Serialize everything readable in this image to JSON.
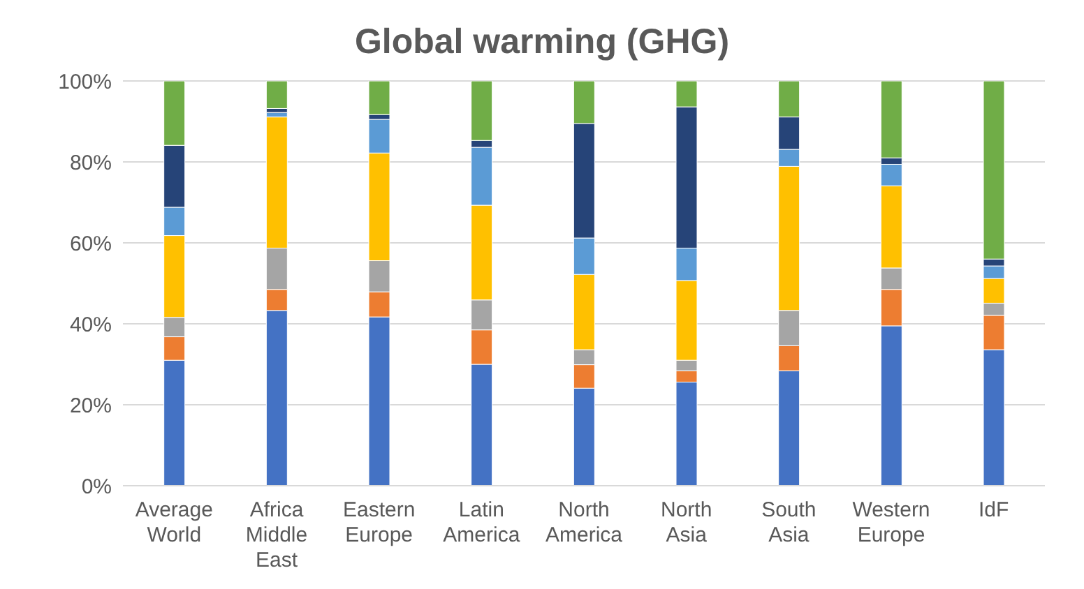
{
  "chart_data": {
    "type": "bar",
    "stacked": true,
    "title": "Global warming (GHG)",
    "categories": [
      "Average World",
      "Africa Middle East",
      "Eastern Europe",
      "Latin America",
      "North America",
      "North Asia",
      "South Asia",
      "Western Europe",
      "IdF"
    ],
    "series": [
      {
        "color": "#4472c4",
        "values": [
          31.0,
          43.3,
          41.7,
          30.0,
          24.1,
          25.6,
          28.4,
          39.5,
          33.6
        ]
      },
      {
        "color": "#ed7d31",
        "values": [
          5.8,
          5.2,
          6.2,
          8.5,
          5.8,
          2.8,
          6.2,
          9.0,
          8.5
        ]
      },
      {
        "color": "#a5a5a5",
        "values": [
          4.8,
          10.2,
          7.7,
          7.4,
          3.7,
          2.6,
          8.7,
          5.3,
          3.0
        ]
      },
      {
        "color": "#ffc000",
        "values": [
          20.2,
          32.4,
          26.6,
          23.4,
          18.6,
          19.7,
          35.6,
          20.3,
          6.1
        ]
      },
      {
        "color": "#5b9bd5",
        "values": [
          7.0,
          1.1,
          8.3,
          14.3,
          9.0,
          8.0,
          4.2,
          5.3,
          3.1
        ]
      },
      {
        "color": "#264478",
        "values": [
          15.3,
          1.0,
          1.2,
          1.7,
          28.3,
          34.9,
          8.0,
          1.6,
          1.7
        ]
      },
      {
        "color": "#70ad47",
        "values": [
          15.9,
          6.8,
          8.3,
          14.7,
          10.5,
          6.4,
          8.9,
          19.0,
          44.0
        ]
      }
    ],
    "ylim": [
      0,
      100
    ],
    "yticks": [
      {
        "value": 0,
        "label": "0%"
      },
      {
        "value": 20,
        "label": "20%"
      },
      {
        "value": 40,
        "label": "40%"
      },
      {
        "value": 60,
        "label": "60%"
      },
      {
        "value": 80,
        "label": "80%"
      },
      {
        "value": 100,
        "label": "100%"
      }
    ],
    "grid": "y",
    "legend": false
  }
}
